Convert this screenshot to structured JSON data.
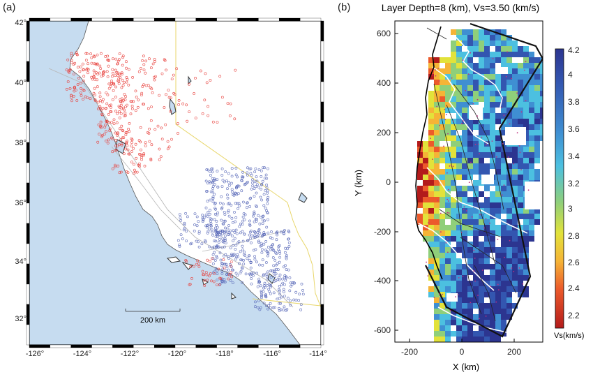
{
  "panel_a": {
    "label": "(a)",
    "lon_ticks": [
      "-126°",
      "-124°",
      "-122°",
      "-120°",
      "-118°",
      "-116°",
      "-114°"
    ],
    "lat_ticks": [
      "42°",
      "40°",
      "38°",
      "36°",
      "34°",
      "32°"
    ],
    "scale_bar_label": "200 km",
    "colors": {
      "ocean": "#c6dcf0",
      "land": "#ffffff",
      "red_stations": "#e8403c",
      "blue_stations": "#5868b8"
    }
  },
  "panel_b": {
    "label": "(b)",
    "title": "Layer Depth=8 (km), Vs=3.50 (km/s)",
    "xlabel": "X (km)",
    "ylabel": "Y (km)",
    "x_ticks": [
      "-200",
      "0",
      "200"
    ],
    "y_ticks": [
      "600",
      "400",
      "200",
      "0",
      "-200",
      "-400",
      "-600"
    ],
    "colorbar": {
      "ticks": [
        "4.2",
        "4",
        "3.8",
        "3.6",
        "3.4",
        "3.2",
        "3",
        "2.8",
        "2.6",
        "2.4",
        "2.2"
      ],
      "unit_label": "Vs(km/s)"
    }
  }
}
